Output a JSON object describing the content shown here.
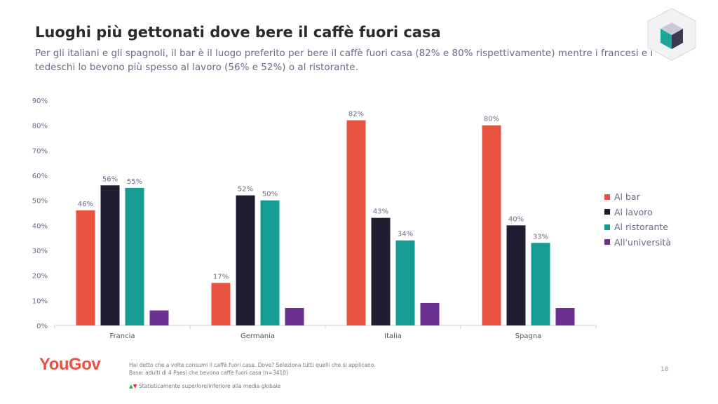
{
  "slide": {
    "title": "Luoghi più gettonati dove bere il caffè fuori casa",
    "subtitle": "Per gli italiani e gli spagnoli, il bar è il luogo preferito per bere il caffè fuori casa (82% e 80% rispettivamente) mentre i francesi e i tedeschi lo bevono più spesso al lavoro (56% e 52%) o al ristorante.",
    "brand": "YouGov",
    "question": "Hai detto che a volte consumi il caffè fuori casa. Dove? Seleziona tutti quelli che si applicano.",
    "base": "Base: adulti di 4 Paesi che bevono caffè fuori casa (n=3410)",
    "significance_up": "▲",
    "significance_down": "▼",
    "significance_note": "Statisticamente superiore/inferiore alla media globale",
    "page_number": "18"
  },
  "colors": {
    "title": "#2b2b2b",
    "subtitle": "#6a6a8a",
    "brand": "#ec5040"
  },
  "chart_data": {
    "type": "bar",
    "categories": [
      "Francia",
      "Germania",
      "Italia",
      "Spagna"
    ],
    "series": [
      {
        "name": "Al bar",
        "color": "#e9523f",
        "values": [
          46,
          17,
          82,
          80
        ],
        "labels": [
          "46%",
          "17%",
          "82%",
          "80%"
        ]
      },
      {
        "name": "Al lavoro",
        "color": "#1f1d32",
        "values": [
          56,
          52,
          43,
          40
        ],
        "labels": [
          "56%",
          "52%",
          "43%",
          "40%"
        ]
      },
      {
        "name": "Al ristorante",
        "color": "#169c94",
        "values": [
          55,
          50,
          34,
          33
        ],
        "labels": [
          "55%",
          "50%",
          "34%",
          "33%"
        ]
      },
      {
        "name": "All'università",
        "color": "#6b2f91",
        "values": [
          6,
          7,
          9,
          7
        ],
        "labels": [
          "",
          "",
          "",
          ""
        ]
      }
    ],
    "ylim": [
      0,
      90
    ],
    "yticks": [
      0,
      10,
      20,
      30,
      40,
      50,
      60,
      70,
      80,
      90
    ],
    "ytick_labels": [
      "0%",
      "10%",
      "20%",
      "30%",
      "40%",
      "50%",
      "60%",
      "70%",
      "80%",
      "90%"
    ],
    "xlabel": "",
    "ylabel": "",
    "grid": false,
    "legend_position": "right"
  }
}
